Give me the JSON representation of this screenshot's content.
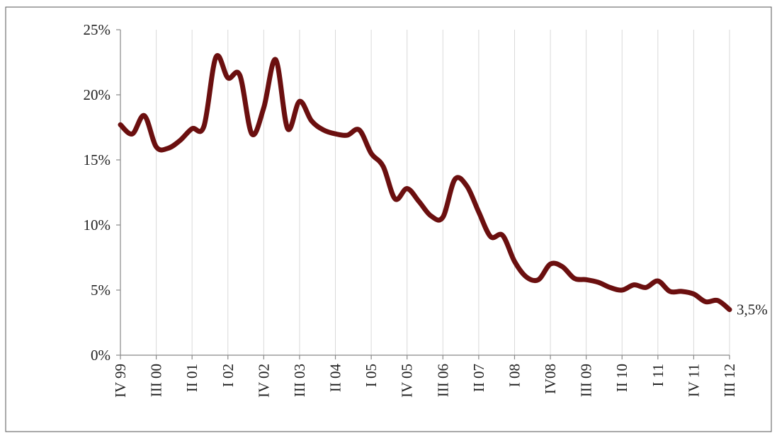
{
  "chart_data": {
    "type": "line",
    "categories": [
      "IV 99",
      null,
      null,
      "III 00",
      null,
      null,
      "II 01",
      null,
      null,
      "I 02",
      null,
      null,
      "IV 02",
      null,
      null,
      "III 03",
      null,
      null,
      "II 04",
      null,
      null,
      "I 05",
      null,
      null,
      "IV 05",
      null,
      null,
      "III 06",
      null,
      null,
      "II 07",
      null,
      null,
      "I 08",
      null,
      null,
      "IV08",
      null,
      null,
      "III 09",
      null,
      null,
      "II 10",
      null,
      null,
      "I 11",
      null,
      null,
      "IV 11",
      null,
      null,
      "III 12"
    ],
    "series": [
      {
        "color": "#6b0f0f",
        "values": [
          17.7,
          17.0,
          18.4,
          16.0,
          15.9,
          16.5,
          17.4,
          17.6,
          22.9,
          21.3,
          21.5,
          17.0,
          19.0,
          22.7,
          17.4,
          19.5,
          18.0,
          17.3,
          17.0,
          16.9,
          17.3,
          15.5,
          14.5,
          12.0,
          12.8,
          11.8,
          10.7,
          10.6,
          13.5,
          13.0,
          11.0,
          9.1,
          9.2,
          7.2,
          6.0,
          5.8,
          7.0,
          6.8,
          5.9,
          5.8,
          5.6,
          5.2,
          5.0,
          5.4,
          5.2,
          5.7,
          4.9,
          4.9,
          4.7,
          4.1,
          4.2,
          3.5
        ],
        "value_labels": [
          null,
          null,
          null,
          null,
          null,
          null,
          null,
          null,
          null,
          null,
          null,
          null,
          null,
          null,
          null,
          null,
          null,
          null,
          null,
          null,
          null,
          null,
          null,
          null,
          null,
          null,
          null,
          null,
          null,
          null,
          null,
          null,
          null,
          null,
          null,
          null,
          null,
          null,
          null,
          null,
          null,
          null,
          null,
          null,
          null,
          null,
          null,
          null,
          null,
          null,
          null,
          "3,5%"
        ]
      }
    ],
    "ylim": [
      0,
      25
    ],
    "yticks": [
      {
        "value": 0,
        "label": "0%"
      },
      {
        "value": 5,
        "label": "5%"
      },
      {
        "value": 10,
        "label": "10%"
      },
      {
        "value": 15,
        "label": "15%"
      },
      {
        "value": 20,
        "label": "20%"
      },
      {
        "value": 25,
        "label": "25%"
      }
    ],
    "grid": true
  }
}
